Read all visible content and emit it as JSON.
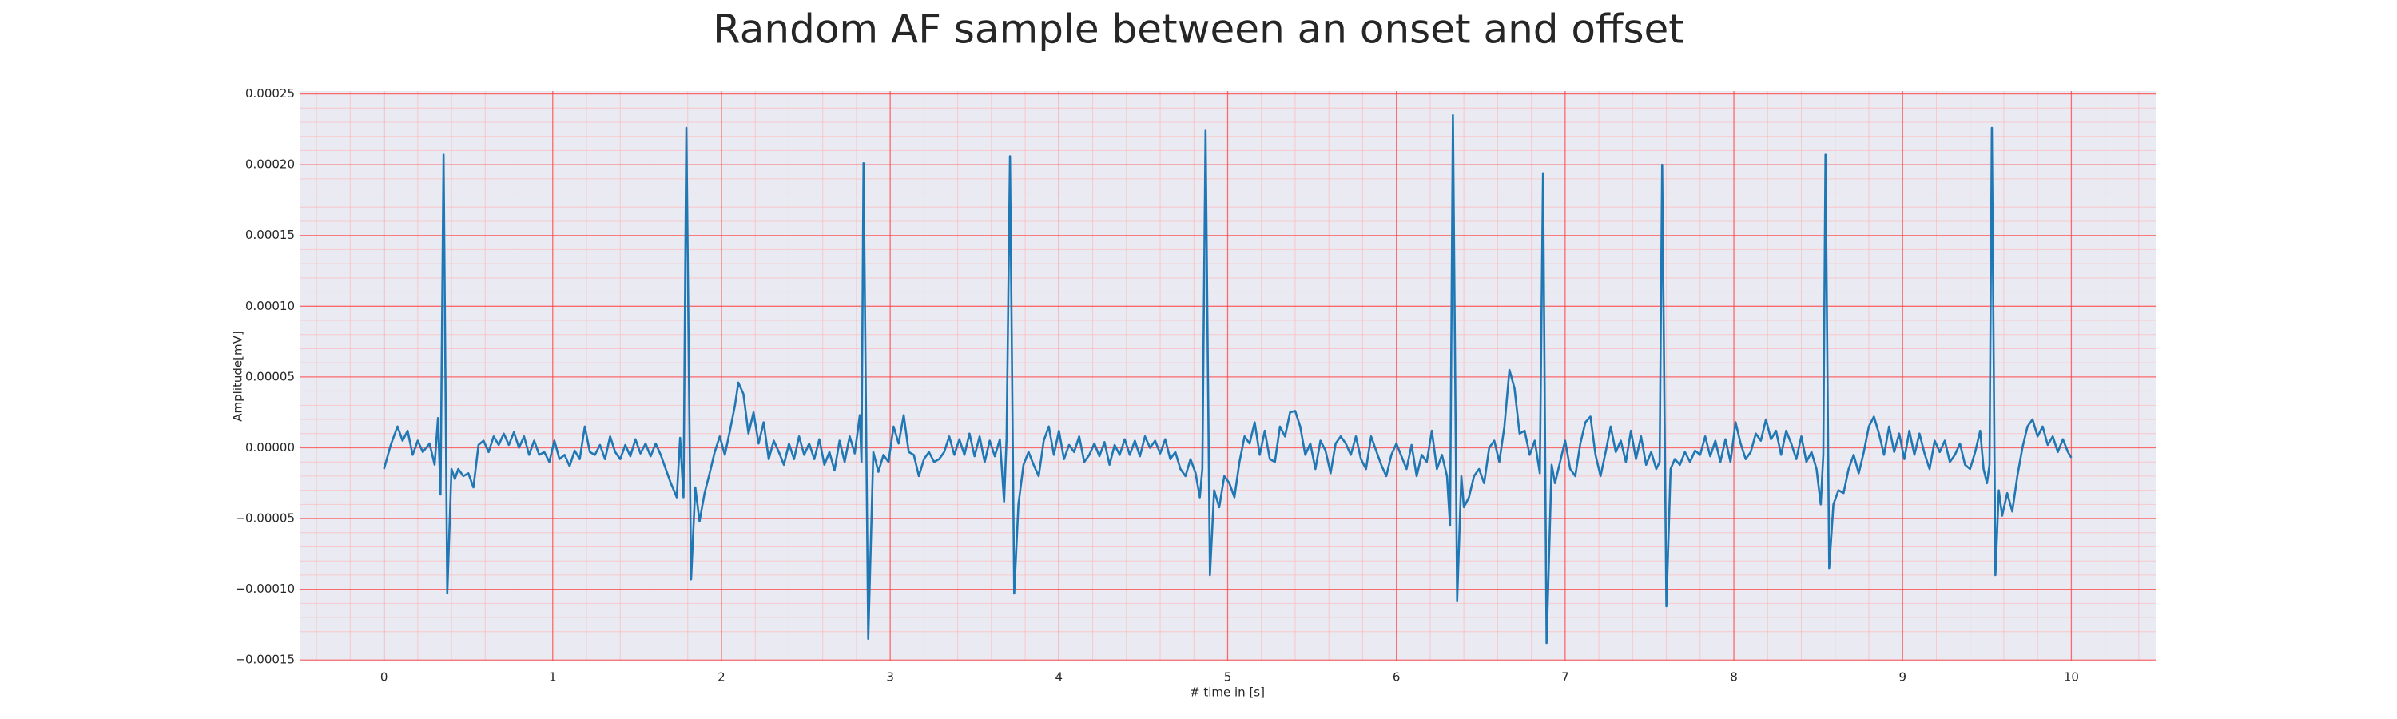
{
  "chart_data": {
    "type": "line",
    "title": "Random AF sample between an onset and offset",
    "xlabel": "# time in [s]",
    "ylabel": "Amplitude[mV]",
    "color": "#1f77b4",
    "grid": true,
    "minor_grid": true,
    "xlim": [
      -0.5,
      10.5
    ],
    "ylim": [
      -0.000151,
      0.000252
    ],
    "xticks": [
      0,
      1,
      2,
      3,
      4,
      5,
      6,
      7,
      8,
      9,
      10
    ],
    "yticks": [
      {
        "value": -0.00015,
        "label": "−0.00015"
      },
      {
        "value": -0.0001,
        "label": "−0.00010"
      },
      {
        "value": -5e-05,
        "label": "−0.00005"
      },
      {
        "value": 0,
        "label": "0.00000"
      },
      {
        "value": 5e-05,
        "label": "0.00005"
      },
      {
        "value": 0.0001,
        "label": "0.00010"
      },
      {
        "value": 0.00015,
        "label": "0.00015"
      },
      {
        "value": 0.0002,
        "label": "0.00020"
      },
      {
        "value": 0.00025,
        "label": "0.00025"
      }
    ],
    "xminorticks": [
      -0.4,
      -0.2,
      0.2,
      0.4,
      0.6,
      0.8,
      1.2,
      1.4,
      1.6,
      1.8,
      2.2,
      2.4,
      2.6,
      2.8,
      3.2,
      3.4,
      3.6,
      3.8,
      4.2,
      4.4,
      4.6,
      4.8,
      5.2,
      5.4,
      5.6,
      5.8,
      6.2,
      6.4,
      6.6,
      6.8,
      7.2,
      7.4,
      7.6,
      7.8,
      8.2,
      8.4,
      8.6,
      8.8,
      9.2,
      9.4,
      9.6,
      9.8,
      10.2,
      10.4
    ],
    "yminorticks": [
      -0.00014,
      -0.00013,
      -0.00012,
      -0.00011,
      -9e-05,
      -8e-05,
      -7e-05,
      -6e-05,
      -4e-05,
      -3e-05,
      -2e-05,
      -1e-05,
      1e-05,
      2e-05,
      3e-05,
      4e-05,
      6e-05,
      7e-05,
      8e-05,
      9e-05,
      0.00011,
      0.00012,
      0.00013,
      0.00014,
      0.00016,
      0.00017,
      0.00018,
      0.00019,
      0.00021,
      0.00022,
      0.00023,
      0.00024
    ],
    "x": [
      0.0,
      0.04,
      0.08,
      0.11,
      0.14,
      0.17,
      0.2,
      0.23,
      0.27,
      0.3,
      0.32,
      0.335,
      0.353,
      0.375,
      0.4,
      0.42,
      0.44,
      0.47,
      0.5,
      0.53,
      0.56,
      0.59,
      0.62,
      0.65,
      0.68,
      0.71,
      0.74,
      0.77,
      0.8,
      0.83,
      0.86,
      0.89,
      0.92,
      0.95,
      0.98,
      1.01,
      1.04,
      1.07,
      1.1,
      1.13,
      1.16,
      1.19,
      1.22,
      1.25,
      1.28,
      1.31,
      1.34,
      1.37,
      1.4,
      1.43,
      1.46,
      1.49,
      1.52,
      1.55,
      1.58,
      1.61,
      1.64,
      1.67,
      1.7,
      1.735,
      1.755,
      1.775,
      1.792,
      1.82,
      1.845,
      1.87,
      1.9,
      1.93,
      1.96,
      1.99,
      2.02,
      2.05,
      2.08,
      2.1,
      2.13,
      2.16,
      2.19,
      2.22,
      2.25,
      2.28,
      2.31,
      2.34,
      2.37,
      2.4,
      2.43,
      2.46,
      2.49,
      2.52,
      2.55,
      2.58,
      2.61,
      2.64,
      2.67,
      2.7,
      2.73,
      2.76,
      2.79,
      2.82,
      2.83,
      2.842,
      2.87,
      2.9,
      2.93,
      2.96,
      2.99,
      3.02,
      3.05,
      3.08,
      3.11,
      3.14,
      3.17,
      3.2,
      3.23,
      3.26,
      3.29,
      3.32,
      3.35,
      3.38,
      3.41,
      3.44,
      3.47,
      3.5,
      3.53,
      3.56,
      3.59,
      3.62,
      3.65,
      3.675,
      3.69,
      3.71,
      3.735,
      3.76,
      3.79,
      3.82,
      3.85,
      3.88,
      3.91,
      3.94,
      3.97,
      4.0,
      4.03,
      4.06,
      4.09,
      4.12,
      4.15,
      4.18,
      4.21,
      4.24,
      4.27,
      4.3,
      4.33,
      4.36,
      4.39,
      4.42,
      4.45,
      4.48,
      4.51,
      4.54,
      4.57,
      4.6,
      4.63,
      4.66,
      4.69,
      4.72,
      4.75,
      4.78,
      4.81,
      4.835,
      4.85,
      4.869,
      4.895,
      4.92,
      4.95,
      4.98,
      5.01,
      5.04,
      5.07,
      5.1,
      5.13,
      5.16,
      5.19,
      5.22,
      5.25,
      5.28,
      5.31,
      5.34,
      5.37,
      5.4,
      5.43,
      5.46,
      5.49,
      5.52,
      5.55,
      5.58,
      5.61,
      5.64,
      5.67,
      5.7,
      5.73,
      5.76,
      5.79,
      5.82,
      5.85,
      5.88,
      5.91,
      5.94,
      5.97,
      6.0,
      6.03,
      6.06,
      6.09,
      6.12,
      6.15,
      6.18,
      6.21,
      6.24,
      6.27,
      6.3,
      6.318,
      6.335,
      6.36,
      6.385,
      6.4,
      6.43,
      6.46,
      6.49,
      6.52,
      6.55,
      6.58,
      6.61,
      6.64,
      6.67,
      6.7,
      6.73,
      6.76,
      6.79,
      6.82,
      6.85,
      6.869,
      6.89,
      6.92,
      6.94,
      6.97,
      7.0,
      7.03,
      7.06,
      7.09,
      7.12,
      7.15,
      7.18,
      7.21,
      7.24,
      7.27,
      7.3,
      7.33,
      7.36,
      7.39,
      7.42,
      7.45,
      7.48,
      7.51,
      7.54,
      7.56,
      7.575,
      7.6,
      7.625,
      7.65,
      7.68,
      7.71,
      7.74,
      7.77,
      7.8,
      7.83,
      7.86,
      7.89,
      7.92,
      7.95,
      7.98,
      8.01,
      8.04,
      8.07,
      8.1,
      8.13,
      8.16,
      8.19,
      8.22,
      8.25,
      8.28,
      8.31,
      8.34,
      8.37,
      8.4,
      8.43,
      8.46,
      8.49,
      8.515,
      8.53,
      8.543,
      8.565,
      8.59,
      8.62,
      8.65,
      8.68,
      8.71,
      8.74,
      8.77,
      8.8,
      8.83,
      8.86,
      8.89,
      8.92,
      8.95,
      8.98,
      9.01,
      9.04,
      9.07,
      9.1,
      9.13,
      9.16,
      9.19,
      9.22,
      9.25,
      9.28,
      9.31,
      9.34,
      9.37,
      9.4,
      9.43,
      9.46,
      9.48,
      9.5,
      9.515,
      9.529,
      9.55,
      9.57,
      9.59,
      9.62,
      9.65,
      9.68,
      9.71,
      9.74,
      9.77,
      9.8,
      9.83,
      9.86,
      9.89,
      9.92,
      9.95,
      9.98,
      10.0
    ],
    "values": [
      -1.5e-05,
      2e-06,
      1.5e-05,
      5e-06,
      1.2e-05,
      -5e-06,
      5e-06,
      -3e-06,
      3e-06,
      -1.2e-05,
      2.1e-05,
      -3.3e-05,
      0.000207,
      -0.000103,
      -1.5e-05,
      -2.2e-05,
      -1.5e-05,
      -2e-05,
      -1.8e-05,
      -2.8e-05,
      2e-06,
      5e-06,
      -3e-06,
      8e-06,
      2e-06,
      1e-05,
      2e-06,
      1.1e-05,
      0,
      8e-06,
      -5e-06,
      5e-06,
      -5e-06,
      -3e-06,
      -1e-05,
      5e-06,
      -8e-06,
      -5e-06,
      -1.3e-05,
      -2e-06,
      -8e-06,
      1.5e-05,
      -3e-06,
      -5e-06,
      2e-06,
      -8e-06,
      8e-06,
      -3e-06,
      -8e-06,
      2e-06,
      -6e-06,
      6e-06,
      -4e-06,
      3e-06,
      -6e-06,
      3e-06,
      -5e-06,
      -1.5e-05,
      -2.5e-05,
      -3.5e-05,
      7e-06,
      -3.5e-05,
      0.000226,
      -9.3e-05,
      -2.8e-05,
      -5.2e-05,
      -3.2e-05,
      -1.8e-05,
      -3e-06,
      8e-06,
      -5e-06,
      1.2e-05,
      3e-05,
      4.6e-05,
      3.8e-05,
      1e-05,
      2.5e-05,
      3e-06,
      1.8e-05,
      -8e-06,
      5e-06,
      -3e-06,
      -1.2e-05,
      3e-06,
      -8e-06,
      8e-06,
      -5e-06,
      3e-06,
      -8e-06,
      6e-06,
      -1.2e-05,
      -3e-06,
      -1.6e-05,
      5e-06,
      -1e-05,
      8e-06,
      -4e-06,
      2.3e-05,
      -1e-05,
      0.000201,
      -0.000135,
      -3e-06,
      -1.7e-05,
      -5e-06,
      -1e-05,
      1.5e-05,
      3e-06,
      2.3e-05,
      -3e-06,
      -5e-06,
      -2e-05,
      -8e-06,
      -3e-06,
      -1e-05,
      -8e-06,
      -3e-06,
      8e-06,
      -5e-06,
      6e-06,
      -5e-06,
      1e-05,
      -6e-06,
      8e-06,
      -1e-05,
      5e-06,
      -6e-06,
      6e-06,
      -3.8e-05,
      7e-06,
      0.000206,
      -0.000103,
      -4e-05,
      -1.2e-05,
      -3e-06,
      -1.2e-05,
      -2e-05,
      5e-06,
      1.5e-05,
      -5e-06,
      1.2e-05,
      -8e-06,
      2e-06,
      -3e-06,
      8e-06,
      -1e-05,
      -5e-06,
      3e-06,
      -6e-06,
      4e-06,
      -1.2e-05,
      2e-06,
      -5e-06,
      6e-06,
      -5e-06,
      5e-06,
      -6e-06,
      8e-06,
      0,
      5e-06,
      -4e-06,
      6e-06,
      -8e-06,
      -3e-06,
      -1.5e-05,
      -2e-05,
      -8e-06,
      -1.8e-05,
      -3.5e-05,
      -1.5e-05,
      0.000224,
      -9e-05,
      -3e-05,
      -4.2e-05,
      -2e-05,
      -2.5e-05,
      -3.5e-05,
      -1e-05,
      8e-06,
      3e-06,
      1.8e-05,
      -5e-06,
      1.2e-05,
      -8e-06,
      -1e-05,
      1.5e-05,
      8e-06,
      2.5e-05,
      2.6e-05,
      1.5e-05,
      -5e-06,
      3e-06,
      -1.5e-05,
      5e-06,
      -2e-06,
      -1.8e-05,
      3e-06,
      8e-06,
      3e-06,
      -5e-06,
      8e-06,
      -8e-06,
      -1.5e-05,
      8e-06,
      -2e-06,
      -1.2e-05,
      -2e-05,
      -5e-06,
      3e-06,
      -6e-06,
      -1.5e-05,
      2e-06,
      -2e-05,
      -5e-06,
      -1e-05,
      1.2e-05,
      -1.5e-05,
      -5e-06,
      -2e-05,
      -5.5e-05,
      0.000235,
      -0.000108,
      -2e-05,
      -4.2e-05,
      -3.5e-05,
      -2e-05,
      -1.5e-05,
      -2.5e-05,
      0,
      5e-06,
      -1e-05,
      1.5e-05,
      5.5e-05,
      4.2e-05,
      1e-05,
      1.2e-05,
      -5e-06,
      5e-06,
      -1.8e-05,
      0.000194,
      -0.000138,
      -1.2e-05,
      -2.5e-05,
      -1e-05,
      5e-06,
      -1.5e-05,
      -2e-05,
      3e-06,
      1.8e-05,
      2.2e-05,
      -5e-06,
      -2e-05,
      -3e-06,
      1.5e-05,
      -3e-06,
      5e-06,
      -1e-05,
      1.2e-05,
      -8e-06,
      8e-06,
      -1.2e-05,
      -3e-06,
      -1.5e-05,
      -1e-05,
      0.0002,
      -0.000112,
      -1.5e-05,
      -8e-06,
      -1.2e-05,
      -3e-06,
      -1e-05,
      -2e-06,
      -5e-06,
      8e-06,
      -6e-06,
      5e-06,
      -1e-05,
      6e-06,
      -1e-05,
      1.8e-05,
      3e-06,
      -8e-06,
      -3e-06,
      1e-05,
      5e-06,
      2e-05,
      6e-06,
      1.2e-05,
      -5e-06,
      1.2e-05,
      3e-06,
      -8e-06,
      8e-06,
      -1e-05,
      -3e-06,
      -1.5e-05,
      -4e-05,
      -5e-06,
      0.000207,
      -8.5e-05,
      -4e-05,
      -3e-05,
      -3.2e-05,
      -1.5e-05,
      -5e-06,
      -1.8e-05,
      -3e-06,
      1.5e-05,
      2.2e-05,
      1e-05,
      -5e-06,
      1.5e-05,
      -3e-06,
      1e-05,
      -8e-06,
      1.2e-05,
      -5e-06,
      1e-05,
      -4e-06,
      -1.5e-05,
      5e-06,
      -3e-06,
      5e-06,
      -1e-05,
      -5e-06,
      3e-06,
      -1.2e-05,
      -1.5e-05,
      -3e-06,
      1.2e-05,
      -1.5e-05,
      -2.5e-05,
      -1.2e-05,
      0.000226,
      -9e-05,
      -3e-05,
      -4.8e-05,
      -3.2e-05,
      -4.5e-05,
      -2e-05,
      0,
      1.5e-05,
      2e-05,
      8e-06,
      1.5e-05,
      2e-06,
      8e-06,
      -3e-06,
      6e-06,
      -3e-06,
      -7e-06
    ]
  }
}
